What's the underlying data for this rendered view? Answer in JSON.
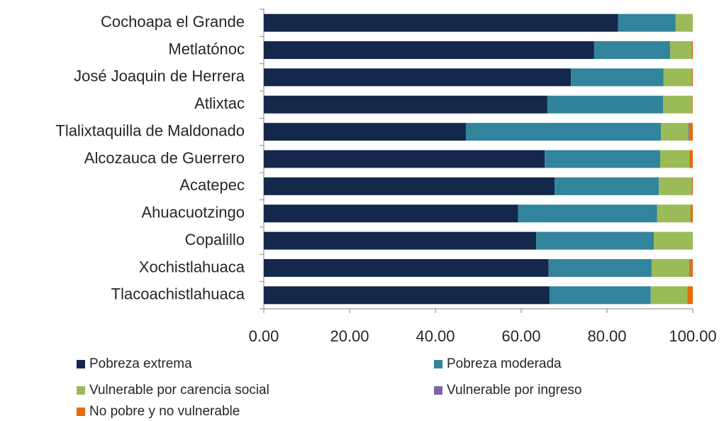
{
  "chart_data": {
    "type": "stacked_barh",
    "categories": [
      "Cochoapa el Grande",
      "Metlatónoc",
      "José Joaquin de Herrera",
      "Atlixtac",
      "Tlalixtaquilla de Maldonado",
      "Alcozauca de Guerrero",
      "Acatepec",
      "Ahuacuotzingo",
      "Copalillo",
      "Xochistlahuaca",
      "Tlacoachistlahuaca"
    ],
    "series": [
      {
        "name": "Pobreza extrema",
        "color": "#14284b",
        "values": [
          82.6,
          77.0,
          71.6,
          66.1,
          47.1,
          65.5,
          67.8,
          59.3,
          63.5,
          66.4,
          66.6
        ]
      },
      {
        "name": "Pobreza moderada",
        "color": "#31849b",
        "values": [
          13.4,
          17.7,
          21.6,
          27.0,
          45.5,
          26.9,
          24.3,
          32.4,
          27.4,
          24.0,
          23.6
        ]
      },
      {
        "name": "Vulnerable por carencia social",
        "color": "#9bbb59",
        "values": [
          4.0,
          5.0,
          6.5,
          6.8,
          6.4,
          6.8,
          7.6,
          7.8,
          9.1,
          8.8,
          8.5
        ]
      },
      {
        "name": "Vulnerable por ingreso",
        "color": "#8064a2",
        "values": [
          0,
          0,
          0.1,
          0,
          0.2,
          0,
          0.1,
          0,
          0,
          0.2,
          0.1
        ]
      },
      {
        "name": "No pobre y no vulnerable",
        "color": "#e46c0a",
        "values": [
          0,
          0.3,
          0.2,
          0.1,
          0.8,
          0.8,
          0.2,
          0.5,
          0,
          0.6,
          1.2
        ]
      }
    ],
    "xlim": [
      0,
      100
    ],
    "xticks": [
      {
        "value": 0,
        "label": "0.00"
      },
      {
        "value": 20,
        "label": "20.00"
      },
      {
        "value": 40,
        "label": "40.00"
      },
      {
        "value": 60,
        "label": "60.00"
      },
      {
        "value": 80,
        "label": "80.00"
      },
      {
        "value": 100,
        "label": "100.00"
      }
    ],
    "legend": "bottom"
  }
}
